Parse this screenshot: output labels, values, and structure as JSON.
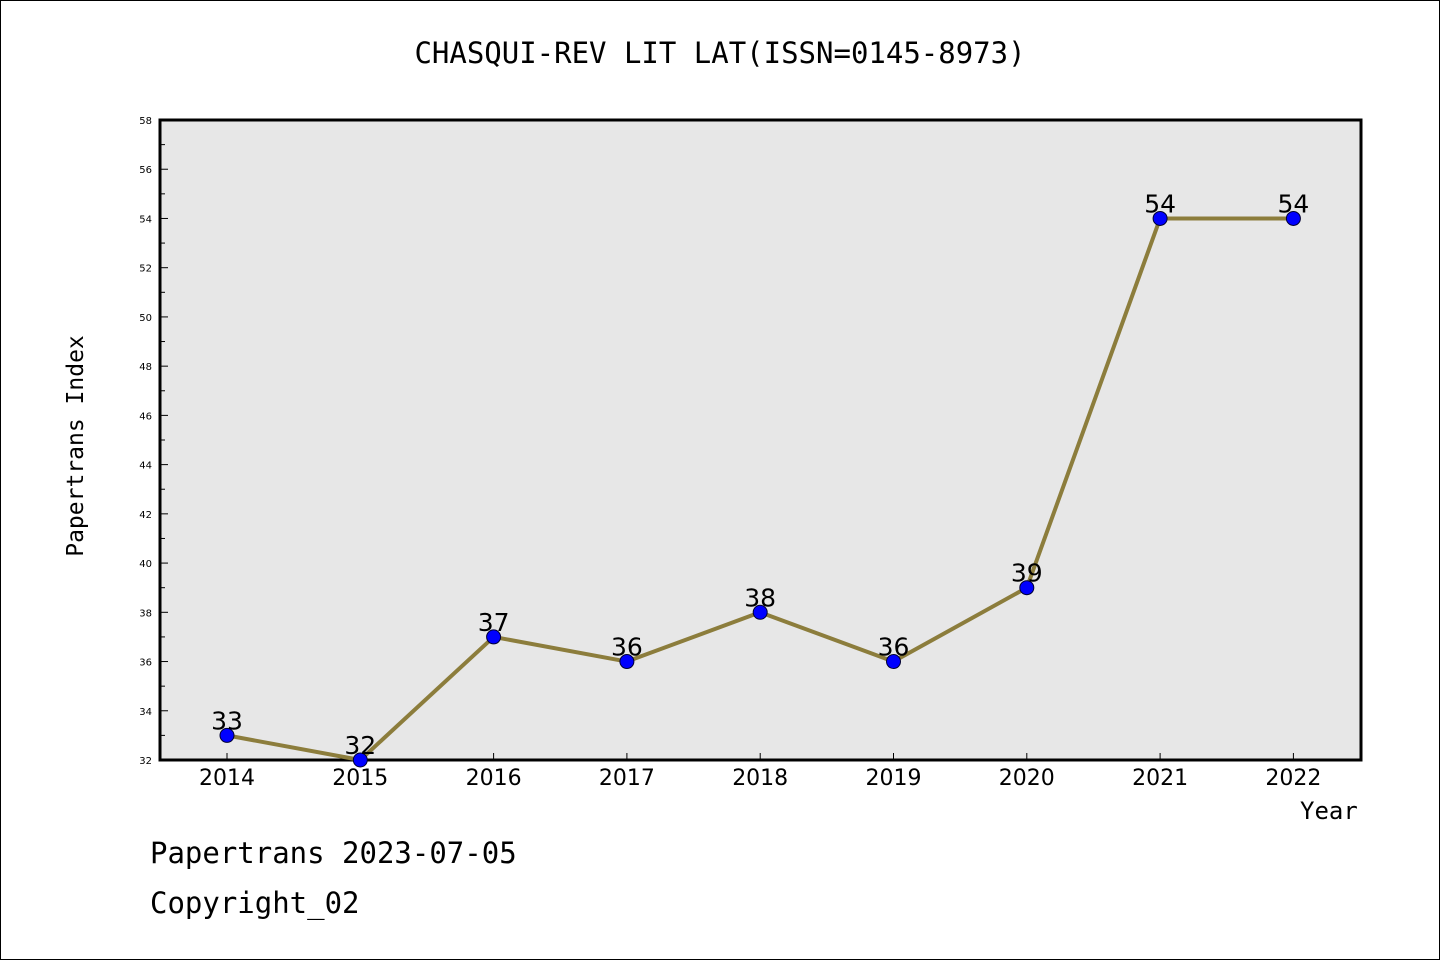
{
  "chart_data": {
    "type": "line",
    "title": "CHASQUI-REV LIT LAT(ISSN=0145-8973)",
    "xlabel": "Year",
    "ylabel": "Papertrans Index",
    "categories": [
      "2014",
      "2015",
      "2016",
      "2017",
      "2018",
      "2019",
      "2020",
      "2021",
      "2022"
    ],
    "series": [
      {
        "values": [
          33,
          32,
          37,
          36,
          38,
          36,
          39,
          54,
          54
        ]
      }
    ],
    "ylim": [
      32,
      58
    ],
    "yticks": [
      "32",
      "34",
      "36",
      "38",
      "40",
      "42",
      "44",
      "46",
      "48",
      "50",
      "52",
      "54",
      "56",
      "58"
    ],
    "grid": false,
    "legend": "none",
    "colors": {
      "plot_background": "#e7e7e7",
      "line": "#8c7d3c",
      "marker": "#0000ff"
    }
  },
  "footer": {
    "line1": "Papertrans 2023-07-05",
    "line2": "Copyright_02"
  }
}
